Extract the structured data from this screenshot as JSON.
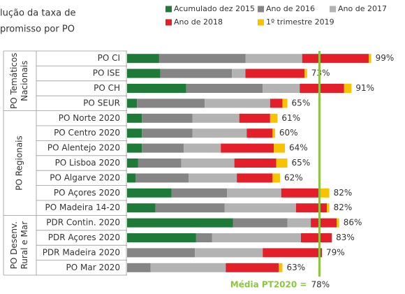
{
  "chart_data": {
    "type": "stacked-barh",
    "title_lines": [
      "lução da taxa de",
      "promisso por PO"
    ],
    "categories": [
      "PO CI",
      "PO ISE",
      "PO CH",
      "PO SEUR",
      "PO Norte 2020",
      "PO Centro 2020",
      "PO Alentejo 2020",
      "PO Lisboa 2020",
      "PO Algarve 2020",
      "PO Açores 2020",
      "PO Madeira 14-20",
      "PDR Contin. 2020",
      "PDR Açores 2020",
      "PDR Madeira 2020",
      "PO Mar 2020"
    ],
    "groups": [
      {
        "label_lines": [
          "PO Temáticos",
          "Nacionais"
        ],
        "start": 0,
        "end": 3
      },
      {
        "label_lines": [
          "PO Regionais"
        ],
        "start": 4,
        "end": 10
      },
      {
        "label_lines": [
          "PO Desenv.",
          "Rural e Mar"
        ],
        "start": 11,
        "end": 14
      }
    ],
    "series": [
      {
        "name": "Acumulado dez 2015",
        "color": "#1f7a3a",
        "values": [
          13,
          13.5,
          24,
          4,
          6,
          6,
          6,
          4.5,
          3.5,
          18,
          11.5,
          43,
          28,
          0,
          0
        ]
      },
      {
        "name": "Ano de 2016",
        "color": "#858585",
        "values": [
          35,
          29,
          31,
          27.5,
          20.5,
          20.5,
          17,
          17.5,
          21.5,
          22.5,
          28,
          22,
          6.5,
          27.5,
          9.5
        ]
      },
      {
        "name": "Ano de 2017",
        "color": "#b3b3b3",
        "values": [
          23,
          5.5,
          15,
          26.5,
          19,
          22,
          15,
          21.5,
          19.5,
          22,
          29,
          9.5,
          36,
          27.5,
          30.5
        ]
      },
      {
        "name": "Ano de 2018",
        "color": "#e3202a",
        "values": [
          27,
          24,
          18,
          5,
          12.5,
          10.5,
          21.5,
          17,
          14.5,
          16,
          12.5,
          10.5,
          12.5,
          24,
          21.5
        ]
      },
      {
        "name": "1º trimestre 2019",
        "color": "#f7c200",
        "values": [
          1,
          1,
          3,
          2,
          3,
          1,
          4.5,
          4.5,
          3,
          3.5,
          1,
          1,
          0,
          0,
          1.5
        ]
      }
    ],
    "totals": [
      99,
      73,
      91,
      65,
      61,
      60,
      64,
      65,
      62,
      82,
      82,
      86,
      83,
      79,
      63
    ],
    "total_labels": [
      "99%",
      "73%",
      "91%",
      "65%",
      "61%",
      "60%",
      "64%",
      "65%",
      "62%",
      "82%",
      "82%",
      "86%",
      "83%",
      "79%",
      "63%"
    ],
    "average": {
      "label": "Média PT2020 =",
      "value": 78,
      "value_label": "78%",
      "color": "#8cc63f"
    },
    "xlim": [
      0,
      111
    ]
  }
}
